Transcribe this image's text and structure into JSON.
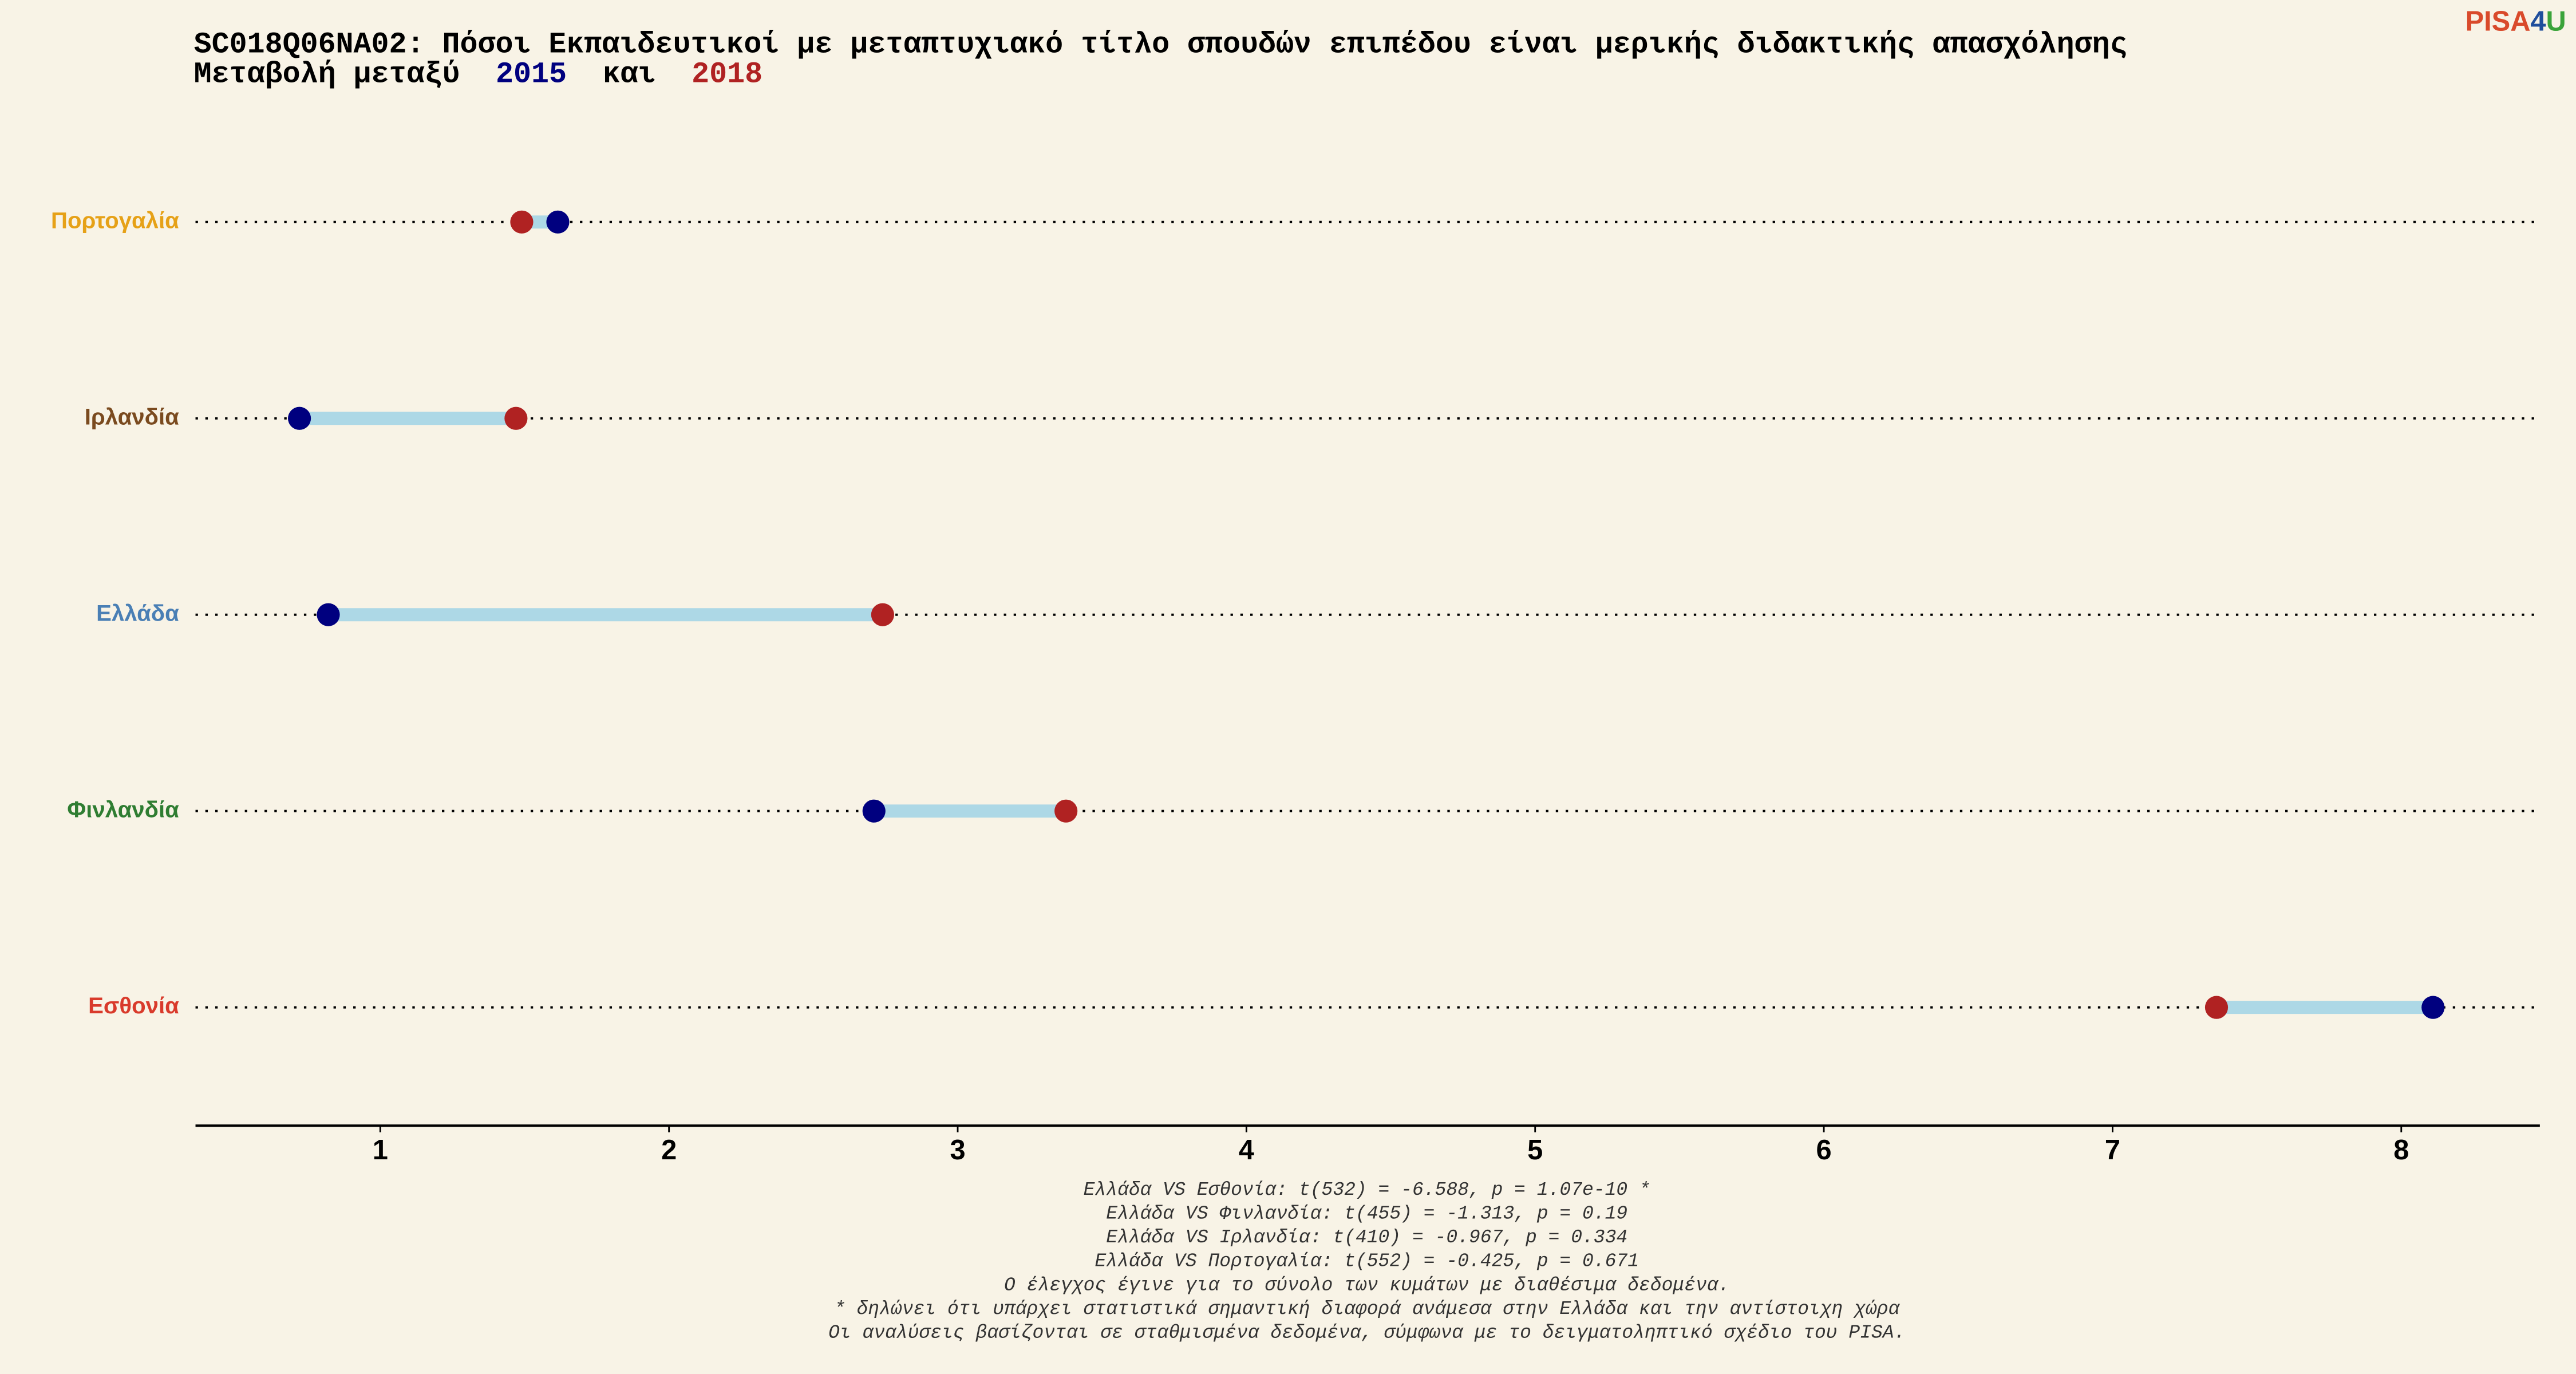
{
  "chart_data": {
    "type": "dumbbell",
    "title": "SC018Q06NA02: Πόσοι Εκπαιδευτικοί με μεταπτυχιακό τίτλο σπουδών επιπέδου είναι μερικής διδακτικής απασχόλησης",
    "subtitle_prefix": "Μεταβολή μεταξύ",
    "subtitle_joiner": "και",
    "categories": [
      "Πορτογαλία",
      "Ιρλανδία",
      "Ελλάδα",
      "Φινλανδία",
      "Εσθονία"
    ],
    "category_colors": [
      "#e6a117",
      "#7a4a1f",
      "#4a7fb5",
      "#2f7d32",
      "#d93a2b"
    ],
    "series": [
      {
        "name": "2015",
        "color": "#00007f",
        "values": [
          1.615,
          0.72,
          0.82,
          2.71,
          8.11
        ]
      },
      {
        "name": "2018",
        "color": "#b02222",
        "values": [
          1.49,
          1.47,
          2.74,
          3.375,
          7.36
        ]
      }
    ],
    "segment_color": "#add8e6",
    "xlim": [
      0.36,
      8.48
    ],
    "xticks": [
      1,
      2,
      3,
      4,
      5,
      6,
      7,
      8
    ],
    "notes": [
      "Ελλάδα VS Εσθονία: t(532) = -6.588, p = 1.07e-10 *",
      "Ελλάδα VS Φινλανδία: t(455) = -1.313, p = 0.19",
      "Ελλάδα VS Ιρλανδία: t(410) = -0.967, p = 0.334",
      "Ελλάδα VS Πορτογαλία: t(552) = -0.425, p = 0.671",
      "Ο έλεγχος έγινε για το σύνολο των κυμάτων με διαθέσιμα δεδομένα.",
      "* δηλώνει ότι υπάρχει στατιστικά σημαντική διαφορά ανάμεσα στην Ελλάδα και την αντίστοιχη χώρα",
      "Οι αναλύσεις βασίζονται σε σταθμισμένα δεδομένα, σύμφωνα με το δειγματοληπτικό σχέδιο του PISA."
    ],
    "logo": [
      "PISA",
      "4",
      "U"
    ]
  }
}
